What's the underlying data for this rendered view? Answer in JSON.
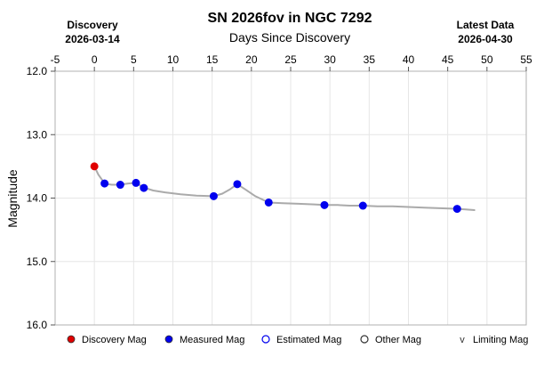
{
  "chart_data": {
    "type": "line",
    "title": "SN 2026fov in NGC 7292",
    "top_xlabel": "Days Since Discovery",
    "ylabel": "Magnitude",
    "discovery": {
      "label": "Discovery",
      "date": "2026-03-14"
    },
    "latest": {
      "label": "Latest Data",
      "date": "2026-04-30"
    },
    "x_ticks": [
      -5,
      0,
      5,
      10,
      15,
      20,
      25,
      30,
      35,
      40,
      45,
      50,
      55
    ],
    "y_ticks": [
      "12.0",
      "13.0",
      "14.0",
      "15.0",
      "16.0"
    ],
    "xlim": [
      -5,
      55
    ],
    "ylim": [
      16.0,
      12.0
    ],
    "y_inverted": true,
    "grid": true,
    "legend_position": "bottom",
    "legend": [
      {
        "label": "Discovery Mag",
        "marker": "filled-circle",
        "color": "#e00000"
      },
      {
        "label": "Measured Mag",
        "marker": "filled-circle",
        "color": "#0000ee"
      },
      {
        "label": "Estimated Mag",
        "marker": "open-circle",
        "color": "#0000ee"
      },
      {
        "label": "Other Mag",
        "marker": "open-circle",
        "color": "#333333"
      },
      {
        "label": "Limiting Mag",
        "marker": "v",
        "color": "#333333"
      }
    ],
    "trend_line": {
      "color": "#aaaaaa",
      "x": [
        0,
        0.5,
        1.3,
        2.2,
        3.2,
        4.3,
        5.3,
        6.2,
        7.5,
        9.0,
        11.0,
        13.0,
        15.2,
        16.3,
        17.3,
        18.2,
        19.3,
        20.5,
        22.2,
        24.0,
        26.0,
        28.0,
        29.3,
        31.0,
        32.5,
        34.2,
        36.0,
        38.0,
        40.0,
        42.0,
        44.0,
        46.2,
        47.3,
        48.4
      ],
      "y": [
        13.5,
        13.63,
        13.77,
        13.79,
        13.79,
        13.77,
        13.76,
        13.83,
        13.88,
        13.91,
        13.94,
        13.96,
        13.97,
        13.93,
        13.86,
        13.78,
        13.87,
        13.97,
        14.07,
        14.08,
        14.09,
        14.1,
        14.11,
        14.11,
        14.12,
        14.12,
        14.13,
        14.13,
        14.14,
        14.15,
        14.16,
        14.17,
        14.18,
        14.19
      ]
    },
    "series": [
      {
        "name": "Discovery Mag",
        "color": "#e00000",
        "marker": "filled-circle",
        "points": [
          {
            "x": 0,
            "y": 13.5
          }
        ]
      },
      {
        "name": "Measured Mag",
        "color": "#0000ee",
        "marker": "filled-circle",
        "points": [
          {
            "x": 1.3,
            "y": 13.77
          },
          {
            "x": 3.3,
            "y": 13.79
          },
          {
            "x": 5.3,
            "y": 13.76
          },
          {
            "x": 6.3,
            "y": 13.84
          },
          {
            "x": 15.2,
            "y": 13.97
          },
          {
            "x": 18.2,
            "y": 13.78
          },
          {
            "x": 22.2,
            "y": 14.07
          },
          {
            "x": 29.3,
            "y": 14.11
          },
          {
            "x": 34.2,
            "y": 14.12
          },
          {
            "x": 46.2,
            "y": 14.17
          }
        ]
      }
    ]
  }
}
